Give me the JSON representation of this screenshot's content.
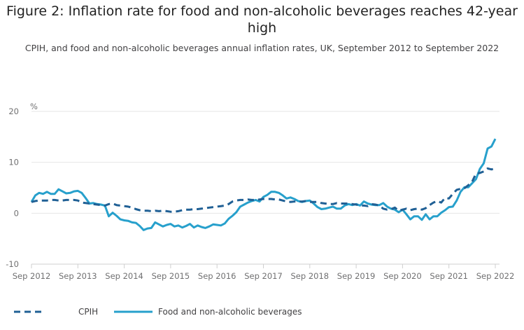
{
  "chart_data": {
    "type": "line",
    "title": "Figure 2: Inflation rate for food and non-alcoholic beverages reaches 42-year high",
    "subtitle": "CPIH, and food and non-alcoholic beverages annual inflation rates, UK, September 2012 to September 2022",
    "ylabel": "%",
    "ylim": [
      -10,
      20
    ],
    "yticks": [
      "-10",
      "0",
      "10",
      "20"
    ],
    "xticks": [
      "Sep 2012",
      "Sep 2013",
      "Sep 2014",
      "Sep 2015",
      "Sep 2016",
      "Sep 2017",
      "Sep 2018",
      "Sep 2019",
      "Sep 2020",
      "Sep 2021",
      "Sep 2022"
    ],
    "grid": true,
    "legend_position": "bottom",
    "x": [
      "2012-09",
      "2012-10",
      "2012-11",
      "2012-12",
      "2013-01",
      "2013-02",
      "2013-03",
      "2013-04",
      "2013-05",
      "2013-06",
      "2013-07",
      "2013-08",
      "2013-09",
      "2013-10",
      "2013-11",
      "2013-12",
      "2014-01",
      "2014-02",
      "2014-03",
      "2014-04",
      "2014-05",
      "2014-06",
      "2014-07",
      "2014-08",
      "2014-09",
      "2014-10",
      "2014-11",
      "2014-12",
      "2015-01",
      "2015-02",
      "2015-03",
      "2015-04",
      "2015-05",
      "2015-06",
      "2015-07",
      "2015-08",
      "2015-09",
      "2015-10",
      "2015-11",
      "2015-12",
      "2016-01",
      "2016-02",
      "2016-03",
      "2016-04",
      "2016-05",
      "2016-06",
      "2016-07",
      "2016-08",
      "2016-09",
      "2016-10",
      "2016-11",
      "2016-12",
      "2017-01",
      "2017-02",
      "2017-03",
      "2017-04",
      "2017-05",
      "2017-06",
      "2017-07",
      "2017-08",
      "2017-09",
      "2017-10",
      "2017-11",
      "2017-12",
      "2018-01",
      "2018-02",
      "2018-03",
      "2018-04",
      "2018-05",
      "2018-06",
      "2018-07",
      "2018-08",
      "2018-09",
      "2018-10",
      "2018-11",
      "2018-12",
      "2019-01",
      "2019-02",
      "2019-03",
      "2019-04",
      "2019-05",
      "2019-06",
      "2019-07",
      "2019-08",
      "2019-09",
      "2019-10",
      "2019-11",
      "2019-12",
      "2020-01",
      "2020-02",
      "2020-03",
      "2020-04",
      "2020-05",
      "2020-06",
      "2020-07",
      "2020-08",
      "2020-09",
      "2020-10",
      "2020-11",
      "2020-12",
      "2021-01",
      "2021-02",
      "2021-03",
      "2021-04",
      "2021-05",
      "2021-06",
      "2021-07",
      "2021-08",
      "2021-09",
      "2021-10",
      "2021-11",
      "2021-12",
      "2022-01",
      "2022-02",
      "2022-03",
      "2022-04",
      "2022-05",
      "2022-06",
      "2022-07",
      "2022-08",
      "2022-09"
    ],
    "series": [
      {
        "name": "CPIH",
        "color": "#206095",
        "style": "dashed",
        "values": [
          2.2,
          2.4,
          2.5,
          2.5,
          2.5,
          2.6,
          2.6,
          2.5,
          2.5,
          2.6,
          2.6,
          2.6,
          2.5,
          2.1,
          2.0,
          1.9,
          1.8,
          1.7,
          1.6,
          1.5,
          1.8,
          1.9,
          1.6,
          1.5,
          1.4,
          1.3,
          1.1,
          0.8,
          0.6,
          0.5,
          0.5,
          0.4,
          0.5,
          0.4,
          0.5,
          0.4,
          0.3,
          0.3,
          0.4,
          0.6,
          0.7,
          0.7,
          0.8,
          0.8,
          0.9,
          1.0,
          1.1,
          1.2,
          1.3,
          1.4,
          1.5,
          1.8,
          2.3,
          2.5,
          2.6,
          2.6,
          2.7,
          2.6,
          2.6,
          2.7,
          2.8,
          2.8,
          2.8,
          2.7,
          2.7,
          2.5,
          2.3,
          2.2,
          2.3,
          2.3,
          2.3,
          2.4,
          2.2,
          2.2,
          2.2,
          2.0,
          1.9,
          1.8,
          1.8,
          2.0,
          1.9,
          1.9,
          1.9,
          1.8,
          1.7,
          1.5,
          1.5,
          1.4,
          1.8,
          1.7,
          1.5,
          0.9,
          0.7,
          0.8,
          1.1,
          0.5,
          0.7,
          0.9,
          0.6,
          0.8,
          0.9,
          0.7,
          1.0,
          1.6,
          2.1,
          2.4,
          2.1,
          3.0,
          2.9,
          3.8,
          4.6,
          4.8,
          4.9,
          5.5,
          6.2,
          7.8,
          7.9,
          8.2,
          8.8,
          8.6,
          8.8
        ]
      },
      {
        "name": "Food and non-alcoholic beverages",
        "color": "#27a0cc",
        "style": "solid",
        "values": [
          2.2,
          3.5,
          4.0,
          3.8,
          4.2,
          3.8,
          3.8,
          4.7,
          4.3,
          3.9,
          4.0,
          4.3,
          4.4,
          4.0,
          3.0,
          1.9,
          2.0,
          1.8,
          1.7,
          1.5,
          -0.6,
          0.1,
          -0.5,
          -1.2,
          -1.4,
          -1.5,
          -1.8,
          -1.9,
          -2.5,
          -3.3,
          -3.0,
          -2.9,
          -1.8,
          -2.2,
          -2.6,
          -2.3,
          -2.1,
          -2.6,
          -2.4,
          -2.8,
          -2.5,
          -2.1,
          -2.8,
          -2.4,
          -2.7,
          -2.9,
          -2.6,
          -2.2,
          -2.3,
          -2.4,
          -2.0,
          -1.1,
          -0.5,
          0.2,
          1.3,
          1.7,
          2.1,
          2.4,
          2.6,
          2.3,
          3.2,
          3.6,
          4.2,
          4.2,
          4.0,
          3.5,
          2.9,
          3.1,
          2.8,
          2.4,
          2.2,
          2.4,
          2.5,
          1.9,
          1.2,
          0.8,
          0.9,
          1.1,
          1.3,
          0.9,
          0.9,
          1.5,
          1.8,
          1.6,
          1.8,
          1.5,
          2.3,
          1.9,
          1.7,
          1.6,
          1.6,
          2.0,
          1.3,
          0.9,
          0.7,
          0.2,
          0.7,
          -0.2,
          -1.2,
          -0.6,
          -0.6,
          -1.3,
          -0.2,
          -1.2,
          -0.6,
          -0.6,
          0.1,
          0.6,
          1.2,
          1.3,
          2.5,
          4.2,
          5.1,
          5.1,
          5.9,
          6.7,
          8.7,
          9.8,
          12.7,
          13.1,
          14.6
        ]
      }
    ]
  }
}
